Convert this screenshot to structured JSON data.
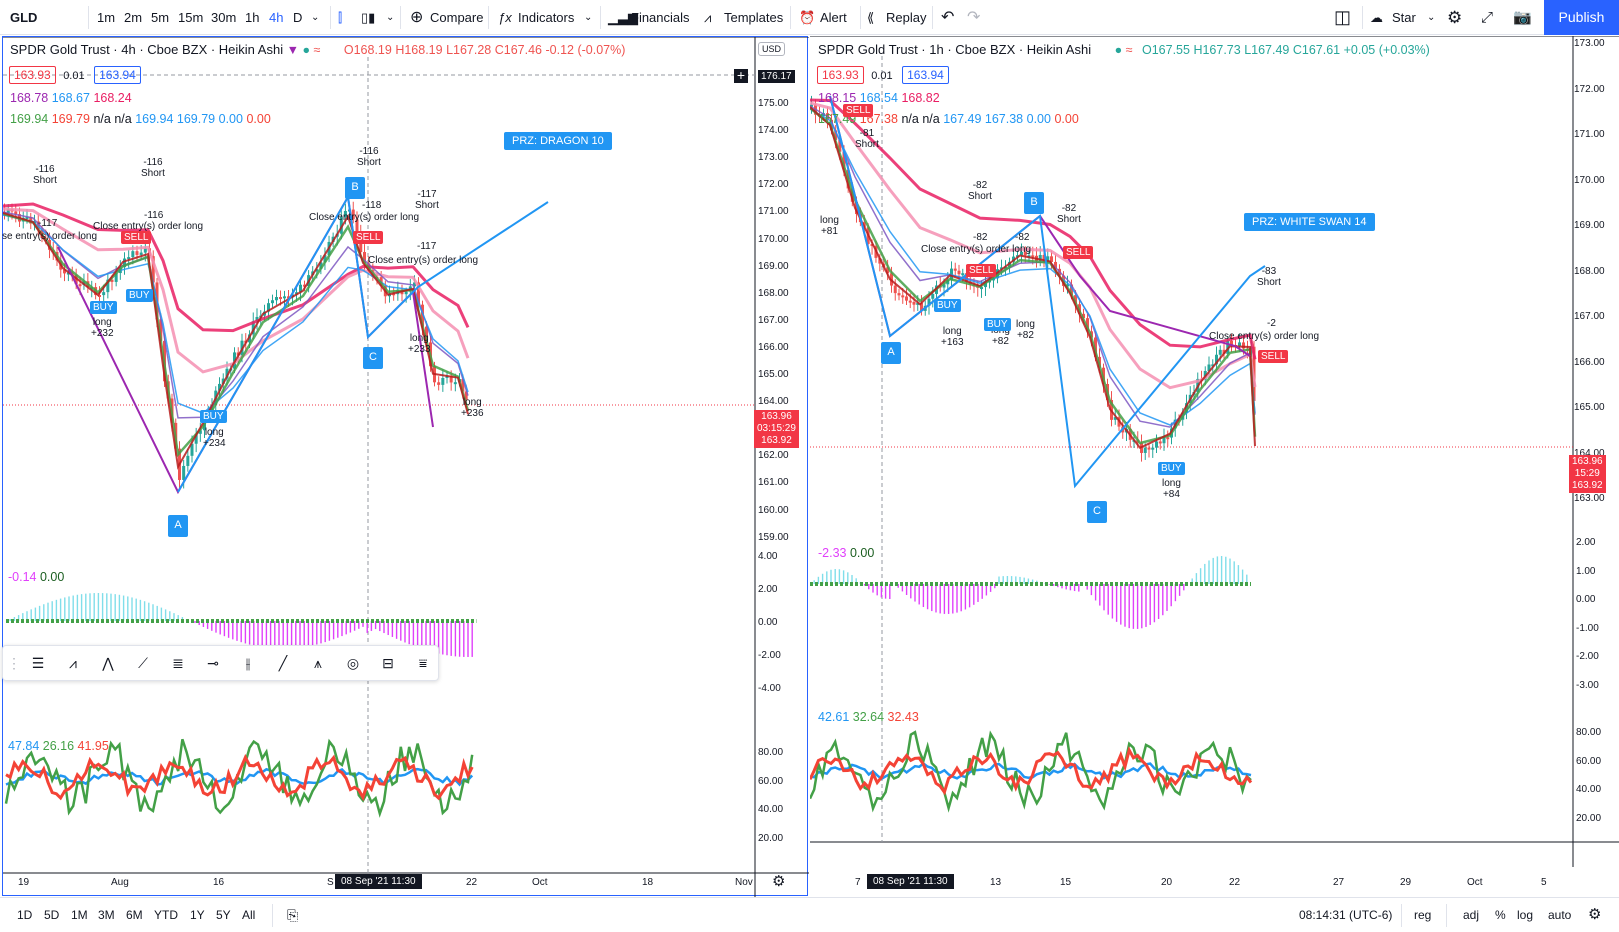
{
  "topbar": {
    "symbol": "GLD",
    "intervals": [
      "1m",
      "2m",
      "5m",
      "15m",
      "30m",
      "1h",
      "4h",
      "D"
    ],
    "compare": "Compare",
    "indicators": "Indicators",
    "financials": "Financials",
    "templates": "Templates",
    "alert": "Alert",
    "replay": "Replay",
    "star": "Star",
    "publish": "Publish"
  },
  "left": {
    "title": "SPDR Gold Trust · 4h · Cboe BZX · Heikin Ashi",
    "ohlc": {
      "o": "O168.19",
      "h": "H168.19",
      "l": "L167.28",
      "c": "C167.46",
      "chg": "-0.12 (-0.07%)"
    },
    "bid": "163.93",
    "step": "0.01",
    "ask": "163.94",
    "ma_row": [
      "168.78",
      "168.67",
      "168.24"
    ],
    "bb_row": [
      "169.94",
      "169.79",
      "n/a",
      "n/a",
      "169.94",
      "169.79",
      "0.00",
      "0.00"
    ],
    "currency": "USD",
    "crosshair_price": "176.17",
    "price_axis": [
      "175.00",
      "174.00",
      "173.00",
      "172.00",
      "171.00",
      "170.00",
      "169.00",
      "168.00",
      "167.00",
      "166.00",
      "165.00",
      "164.00",
      "163.00",
      "162.00",
      "161.00",
      "160.00",
      "159.00"
    ],
    "last": {
      "p1": "163.96",
      "t": "03:15:29",
      "p2": "163.92"
    },
    "prz": "PRZ: DRAGON 10",
    "points": [
      "A",
      "B",
      "C"
    ],
    "osc_legend": [
      "-0.14",
      "0.00"
    ],
    "osc_axis": [
      "4.00",
      "2.00",
      "0.00",
      "-2.00",
      "-4.00"
    ],
    "rsi_legend": [
      "47.84",
      "26.16",
      "41.95"
    ],
    "rsi_axis": [
      "80.00",
      "60.00",
      "40.00",
      "20.00"
    ],
    "x_labels": [
      "19",
      "Aug",
      "16",
      "S",
      "22",
      "Oct",
      "18",
      "Nov"
    ],
    "x_sel": "08 Sep '21   11:30",
    "annotations": {
      "a1": "-116",
      "a1b": "Short",
      "a2": "-116",
      "a2b": "Short",
      "a3": "-116",
      "a3b": "Short",
      "a4": "-117",
      "a4b": "Short",
      "a5": "-117",
      "a6": "-116",
      "a7": "-118",
      "a8": "-117",
      "c1": "se entry(s) order long",
      "c2": "Close entry(s) order long",
      "c3": "Close entry(s) order long",
      "c4": "Close entry(s) order long",
      "l1": "long",
      "l1b": "+232",
      "l2": "long",
      "l2b": "+234",
      "l3": "long",
      "l3b": "+233",
      "l4": "long",
      "l4b": "+236",
      "buy": "BUY",
      "sell": "SELL"
    }
  },
  "right": {
    "title": "SPDR Gold Trust · 1h · Cboe BZX · Heikin Ashi",
    "ohlc": {
      "o": "O167.55",
      "h": "H167.73",
      "l": "L167.49",
      "c": "C167.61",
      "chg": "+0.05 (+0.03%)"
    },
    "bid": "163.93",
    "step": "0.01",
    "ask": "163.94",
    "ma_row": [
      "168.15",
      "168.54",
      "168.82"
    ],
    "bb_row": [
      "167.49",
      "167.38",
      "n/a",
      "n/a",
      "167.49",
      "167.38",
      "0.00",
      "0.00"
    ],
    "price_axis": [
      "173.00",
      "172.00",
      "171.00",
      "170.00",
      "169.00",
      "168.00",
      "167.00",
      "166.00",
      "165.00",
      "164.00",
      "163.00"
    ],
    "last": {
      "p1": "163.96",
      "t": "15:29",
      "p2": "163.92"
    },
    "prz": "PRZ: WHITE SWAN 14",
    "osc_legend": [
      "-2.33",
      "0.00"
    ],
    "osc_axis": [
      "2.00",
      "1.00",
      "0.00",
      "-1.00",
      "-2.00",
      "-3.00"
    ],
    "rsi_legend": [
      "42.61",
      "32.64",
      "32.43"
    ],
    "rsi_axis": [
      "80.00",
      "60.00",
      "40.00",
      "20.00"
    ],
    "x_labels": [
      "7",
      "13",
      "15",
      "20",
      "22",
      "27",
      "29",
      "Oct",
      "5"
    ],
    "x_sel": "08 Sep '21   11:30",
    "annotations": {
      "a1": "-81",
      "a1b": "Short",
      "a2": "-82",
      "a2b": "Short",
      "a3": "-82",
      "a3b": "Short",
      "a4": "-83",
      "a4b": "Short",
      "a5": "-82",
      "a6": "-82",
      "a7": "-2",
      "c1": "Close entry(s) order long",
      "c2": "Close entry(s) order long",
      "l0": "long",
      "l0b": "+81",
      "l1": "long",
      "l1b": "+163",
      "l2": "long",
      "l2b": "+82",
      "l3": "long",
      "l3b": "+82",
      "l4": "long",
      "l4b": "+84",
      "buy": "BUY",
      "sell": "SELL"
    }
  },
  "bottombar": {
    "ranges": [
      "1D",
      "5D",
      "1M",
      "3M",
      "6M",
      "YTD",
      "1Y",
      "5Y",
      "All"
    ],
    "time": "08:14:31 (UTC-6)",
    "reg": "reg",
    "adj": "adj",
    "pct": "%",
    "log": "log",
    "auto": "auto"
  },
  "colors": {
    "up": "#26a69a",
    "down": "#ef5350",
    "green": "#43a047",
    "red": "#f44336",
    "blue": "#2196f3",
    "purple": "#9c27b0",
    "pink": "#e91e63",
    "accent": "#2962ff"
  }
}
